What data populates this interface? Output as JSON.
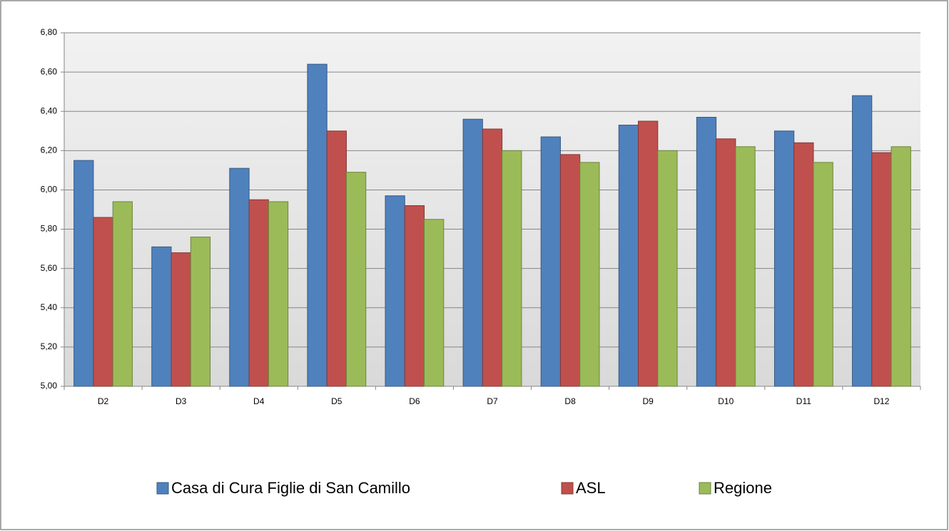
{
  "chart_data": {
    "type": "bar",
    "categories": [
      "D2",
      "D3",
      "D4",
      "D5",
      "D6",
      "D7",
      "D8",
      "D9",
      "D10",
      "D11",
      "D12"
    ],
    "series": [
      {
        "name": "Casa di Cura Figlie di San Camillo",
        "color": "#4f81bd",
        "values": [
          6.15,
          5.71,
          6.11,
          6.64,
          5.97,
          6.36,
          6.27,
          6.33,
          6.37,
          6.3,
          6.48
        ]
      },
      {
        "name": "ASL",
        "color": "#c0504d",
        "values": [
          5.86,
          5.68,
          5.95,
          6.3,
          5.92,
          6.31,
          6.18,
          6.35,
          6.26,
          6.24,
          6.19
        ]
      },
      {
        "name": "Regione",
        "color": "#9bbb59",
        "values": [
          5.94,
          5.76,
          5.94,
          6.09,
          5.85,
          6.2,
          6.14,
          6.2,
          6.22,
          6.14,
          6.22
        ]
      }
    ],
    "ylim": [
      5.0,
      6.8
    ],
    "yticks": [
      {
        "value": 5.0,
        "label": "5,00"
      },
      {
        "value": 5.2,
        "label": "5,20"
      },
      {
        "value": 5.4,
        "label": "5,40"
      },
      {
        "value": 5.6,
        "label": "5,60"
      },
      {
        "value": 5.8,
        "label": "5,80"
      },
      {
        "value": 6.0,
        "label": "6,00"
      },
      {
        "value": 6.2,
        "label": "6,20"
      },
      {
        "value": 6.4,
        "label": "6,40"
      },
      {
        "value": 6.6,
        "label": "6,60"
      },
      {
        "value": 6.8,
        "label": "6,80"
      }
    ],
    "grid": true,
    "legend": "bottom"
  }
}
